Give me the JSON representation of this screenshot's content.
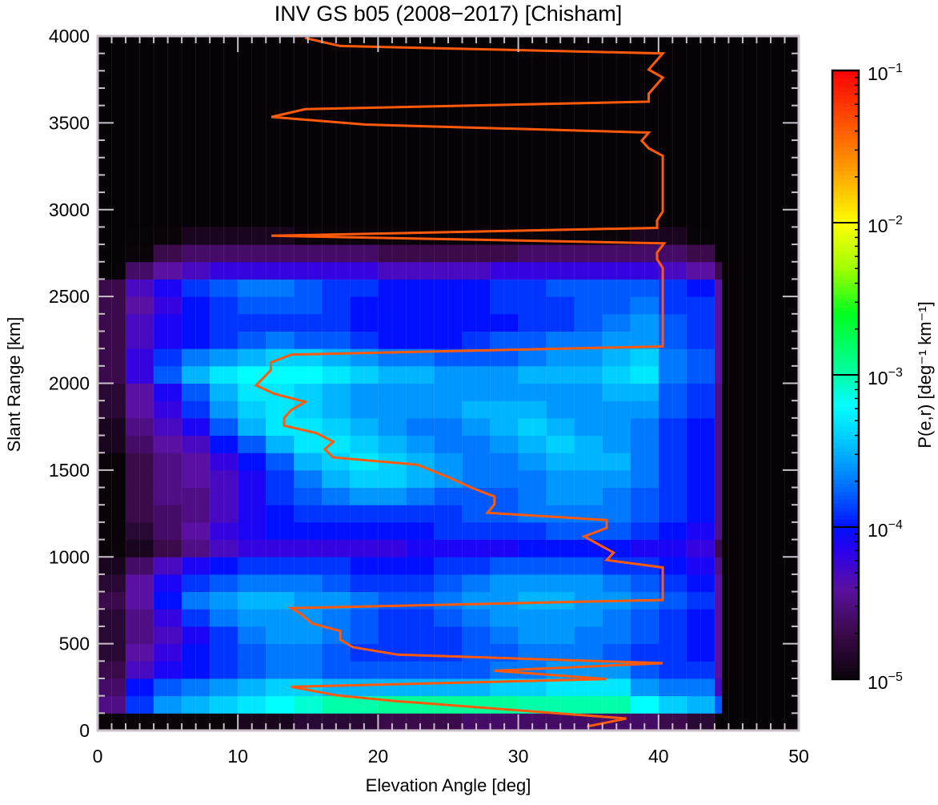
{
  "chart_data": {
    "type": "heatmap",
    "title": "INV GS b05 (2008−2017) [Chisham]",
    "xlabel": "Elevation Angle [deg]",
    "ylabel": "Slant Range [km]",
    "xlim": [
      0,
      50
    ],
    "ylim": [
      0,
      4000
    ],
    "x_ticks": [
      "0",
      "10",
      "20",
      "30",
      "40",
      "50"
    ],
    "x_tick_values": [
      0,
      10,
      20,
      30,
      40,
      50
    ],
    "y_ticks": [
      "0",
      "500",
      "1000",
      "1500",
      "2000",
      "2500",
      "3000",
      "3500",
      "4000"
    ],
    "y_tick_values": [
      0,
      500,
      1000,
      1500,
      2000,
      2500,
      3000,
      3500,
      4000
    ],
    "x_minor_step": 1,
    "y_minor_step": 100,
    "grid": false,
    "heatmap": {
      "value_scale": "log10",
      "elevation_bin_start_deg": 0,
      "elevation_bin_width_deg": 2,
      "elevation_data_max_deg": 44.5,
      "range_bin_start_km": 0,
      "range_bin_width_km": 100,
      "background_log10": -5.5,
      "log10_values_rows_from_0km": [
        [
          -5,
          -5,
          -5,
          -5,
          -5,
          -4.9,
          -4.9,
          -4.8,
          -4.8,
          -4.8,
          -4.7,
          -4.7,
          -4.7,
          -4.6,
          -4.6,
          -4.6,
          -4.6,
          -4.6,
          -4.6,
          -4.6,
          -4.7,
          -4.8,
          -5
        ],
        [
          -4.5,
          -3.9,
          -3.6,
          -3.5,
          -3.4,
          -3.3,
          -3.2,
          -3.1,
          -3.0,
          -3.0,
          -2.95,
          -2.95,
          -2.95,
          -2.95,
          -2.95,
          -3.0,
          -3.0,
          -3.0,
          -3.0,
          -3.2,
          -3.4,
          -3.5,
          -3.8
        ],
        [
          -4.6,
          -4.0,
          -3.8,
          -3.7,
          -3.6,
          -3.5,
          -3.4,
          -3.4,
          -3.5,
          -3.5,
          -3.5,
          -3.5,
          -3.5,
          -3.5,
          -3.4,
          -3.4,
          -3.3,
          -3.3,
          -3.3,
          -3.6,
          -3.7,
          -3.7,
          -4.3
        ],
        [
          -4.7,
          -4.3,
          -4.1,
          -4.0,
          -3.9,
          -3.8,
          -3.7,
          -3.7,
          -3.8,
          -3.8,
          -3.8,
          -3.8,
          -3.8,
          -3.8,
          -3.7,
          -3.7,
          -3.6,
          -3.6,
          -3.6,
          -3.8,
          -3.9,
          -3.9,
          -4.4
        ],
        [
          -4.8,
          -4.4,
          -4.2,
          -4.0,
          -3.9,
          -3.8,
          -3.7,
          -3.7,
          -3.8,
          -3.9,
          -3.9,
          -3.9,
          -3.9,
          -3.8,
          -3.8,
          -3.7,
          -3.7,
          -3.7,
          -3.8,
          -3.9,
          -3.9,
          -4.0,
          -4.4
        ],
        [
          -4.8,
          -4.5,
          -4.3,
          -4.1,
          -3.9,
          -3.7,
          -3.6,
          -3.6,
          -3.7,
          -3.8,
          -3.9,
          -3.9,
          -3.9,
          -3.8,
          -3.7,
          -3.6,
          -3.6,
          -3.7,
          -3.7,
          -3.8,
          -3.9,
          -4.0,
          -4.4
        ],
        [
          -4.8,
          -4.5,
          -4.2,
          -3.9,
          -3.7,
          -3.6,
          -3.6,
          -3.6,
          -3.7,
          -3.8,
          -3.9,
          -3.9,
          -3.8,
          -3.7,
          -3.6,
          -3.6,
          -3.6,
          -3.6,
          -3.7,
          -3.8,
          -3.9,
          -4.0,
          -4.4
        ],
        [
          -4.7,
          -4.4,
          -4.0,
          -3.7,
          -3.6,
          -3.5,
          -3.5,
          -3.6,
          -3.6,
          -3.7,
          -3.8,
          -3.8,
          -3.7,
          -3.6,
          -3.6,
          -3.5,
          -3.5,
          -3.6,
          -3.6,
          -3.7,
          -3.8,
          -3.9,
          -4.4
        ],
        [
          -4.8,
          -4.4,
          -4.1,
          -3.9,
          -3.8,
          -3.7,
          -3.7,
          -3.7,
          -3.8,
          -3.9,
          -3.9,
          -3.9,
          -3.8,
          -3.7,
          -3.6,
          -3.6,
          -3.6,
          -3.6,
          -3.7,
          -3.8,
          -3.9,
          -4.0,
          -4.4
        ],
        [
          -4.9,
          -4.6,
          -4.3,
          -4.1,
          -4.0,
          -3.9,
          -3.9,
          -3.9,
          -3.9,
          -4.0,
          -4.0,
          -4.0,
          -3.9,
          -3.9,
          -3.8,
          -3.8,
          -3.8,
          -3.8,
          -3.9,
          -3.9,
          -4.0,
          -4.1,
          -4.5
        ],
        [
          -5,
          -4.9,
          -4.7,
          -4.5,
          -4.3,
          -4.2,
          -4.2,
          -4.2,
          -4.2,
          -4.2,
          -4.2,
          -4.1,
          -4.1,
          -4.1,
          -4.1,
          -4.0,
          -4.0,
          -4.0,
          -4.0,
          -4.1,
          -4.1,
          -4.2,
          -4.7
        ],
        [
          -5,
          -4.8,
          -4.6,
          -4.4,
          -4.2,
          -4.1,
          -4.0,
          -4.0,
          -4.0,
          -4.0,
          -4.0,
          -4.0,
          -3.9,
          -3.9,
          -3.9,
          -3.9,
          -3.8,
          -3.8,
          -3.8,
          -3.9,
          -4.0,
          -4.1,
          -4.5
        ],
        [
          -5,
          -4.7,
          -4.6,
          -4.5,
          -4.3,
          -4.1,
          -4.0,
          -3.9,
          -3.9,
          -3.9,
          -3.9,
          -3.9,
          -3.9,
          -3.8,
          -3.8,
          -3.7,
          -3.7,
          -3.7,
          -3.7,
          -3.8,
          -3.9,
          -4.0,
          -4.5
        ],
        [
          -5,
          -4.7,
          -4.5,
          -4.5,
          -4.3,
          -4.1,
          -3.9,
          -3.8,
          -3.7,
          -3.6,
          -3.6,
          -3.7,
          -3.8,
          -3.8,
          -3.8,
          -3.7,
          -3.6,
          -3.6,
          -3.7,
          -3.8,
          -3.9,
          -4.0,
          -4.5
        ],
        [
          -5,
          -4.7,
          -4.5,
          -4.4,
          -4.3,
          -4.1,
          -3.9,
          -3.7,
          -3.5,
          -3.4,
          -3.4,
          -3.5,
          -3.6,
          -3.7,
          -3.7,
          -3.7,
          -3.6,
          -3.6,
          -3.6,
          -3.7,
          -3.9,
          -4.0,
          -4.5
        ],
        [
          -5,
          -4.7,
          -4.5,
          -4.4,
          -4.2,
          -4.0,
          -3.8,
          -3.5,
          -3.4,
          -3.3,
          -3.4,
          -3.5,
          -3.6,
          -3.7,
          -3.7,
          -3.6,
          -3.5,
          -3.5,
          -3.5,
          -3.7,
          -3.9,
          -4.0,
          -4.5
        ],
        [
          -4.9,
          -4.6,
          -4.4,
          -4.3,
          -4.0,
          -3.8,
          -3.5,
          -3.3,
          -3.3,
          -3.4,
          -3.5,
          -3.6,
          -3.7,
          -3.7,
          -3.6,
          -3.5,
          -3.4,
          -3.5,
          -3.6,
          -3.7,
          -3.9,
          -4.0,
          -4.5
        ],
        [
          -4.9,
          -4.5,
          -4.3,
          -4.1,
          -3.8,
          -3.5,
          -3.3,
          -3.3,
          -3.4,
          -3.5,
          -3.6,
          -3.7,
          -3.7,
          -3.6,
          -3.5,
          -3.4,
          -3.5,
          -3.6,
          -3.6,
          -3.7,
          -3.9,
          -4.0,
          -4.5
        ],
        [
          -4.8,
          -4.4,
          -4.2,
          -3.9,
          -3.6,
          -3.4,
          -3.3,
          -3.4,
          -3.5,
          -3.6,
          -3.6,
          -3.6,
          -3.6,
          -3.5,
          -3.5,
          -3.5,
          -3.6,
          -3.6,
          -3.6,
          -3.6,
          -3.8,
          -3.9,
          -4.5
        ],
        [
          -4.8,
          -4.4,
          -4.1,
          -3.8,
          -3.5,
          -3.3,
          -3.3,
          -3.4,
          -3.5,
          -3.6,
          -3.6,
          -3.6,
          -3.6,
          -3.6,
          -3.6,
          -3.6,
          -3.6,
          -3.6,
          -3.5,
          -3.5,
          -3.8,
          -3.9,
          -4.5
        ],
        [
          -4.7,
          -4.2,
          -3.8,
          -3.5,
          -3.3,
          -3.2,
          -3.2,
          -3.2,
          -3.3,
          -3.4,
          -3.5,
          -3.5,
          -3.6,
          -3.6,
          -3.6,
          -3.5,
          -3.5,
          -3.5,
          -3.4,
          -3.3,
          -3.7,
          -3.8,
          -4.4
        ],
        [
          -4.7,
          -4.2,
          -3.9,
          -3.7,
          -3.6,
          -3.5,
          -3.4,
          -3.4,
          -3.5,
          -3.6,
          -3.7,
          -3.7,
          -3.8,
          -3.8,
          -3.8,
          -3.7,
          -3.6,
          -3.6,
          -3.5,
          -3.4,
          -3.7,
          -3.8,
          -4.4
        ],
        [
          -4.7,
          -4.3,
          -4.1,
          -4.0,
          -3.9,
          -3.8,
          -3.7,
          -3.8,
          -3.8,
          -3.9,
          -4.0,
          -4.0,
          -4.0,
          -3.9,
          -3.8,
          -3.8,
          -3.7,
          -3.7,
          -3.6,
          -3.6,
          -3.8,
          -3.9,
          -4.4
        ],
        [
          -4.7,
          -4.3,
          -4.1,
          -4.0,
          -3.9,
          -3.9,
          -3.9,
          -3.9,
          -3.9,
          -4.0,
          -4.0,
          -4.0,
          -4.0,
          -4.0,
          -4.0,
          -3.9,
          -3.9,
          -3.8,
          -3.7,
          -3.6,
          -3.8,
          -3.9,
          -4.4
        ],
        [
          -4.7,
          -4.4,
          -4.2,
          -4.0,
          -3.9,
          -3.8,
          -3.8,
          -3.8,
          -3.9,
          -4.0,
          -4.0,
          -4.0,
          -4.0,
          -4.0,
          -3.9,
          -3.9,
          -3.9,
          -3.8,
          -3.8,
          -3.7,
          -3.9,
          -3.9,
          -4.4
        ],
        [
          -4.7,
          -4.3,
          -4.1,
          -3.9,
          -3.8,
          -3.7,
          -3.7,
          -3.8,
          -3.9,
          -3.9,
          -4.0,
          -4.0,
          -4.0,
          -4.0,
          -3.9,
          -3.9,
          -3.8,
          -3.8,
          -3.8,
          -3.8,
          -3.9,
          -4.0,
          -4.4
        ],
        [
          -5.2,
          -4.6,
          -4.4,
          -4.3,
          -4.2,
          -4.2,
          -4.2,
          -4.2,
          -4.2,
          -4.2,
          -4.3,
          -4.3,
          -4.3,
          -4.3,
          -4.2,
          -4.2,
          -4.2,
          -4.2,
          -4.2,
          -4.2,
          -4.3,
          -4.4,
          -4.7
        ],
        [
          -5.5,
          -5.0,
          -4.7,
          -4.6,
          -4.6,
          -4.6,
          -4.6,
          -4.6,
          -4.6,
          -4.6,
          -4.7,
          -4.7,
          -4.7,
          -4.7,
          -4.7,
          -4.6,
          -4.6,
          -4.6,
          -4.6,
          -4.6,
          -4.6,
          -4.7,
          -5.5
        ],
        [
          -5.5,
          -5.3,
          -5.0,
          -4.9,
          -4.9,
          -4.9,
          -4.9,
          -5.0,
          -5.0,
          -5.0,
          -5.0,
          -5.1,
          -5.1,
          -5.0,
          -5.0,
          -5.0,
          -5.0,
          -5.0,
          -5.0,
          -4.9,
          -4.9,
          -5.2,
          -5.5
        ]
      ]
    },
    "overlay_line": {
      "color": "#ff5a0a",
      "points_deg_km": [
        [
          14.8,
          3989
        ],
        [
          17.3,
          3943
        ],
        [
          40.3,
          3900
        ],
        [
          39.3,
          3807
        ],
        [
          40.3,
          3761
        ],
        [
          39.3,
          3668
        ],
        [
          39.3,
          3622
        ],
        [
          14.8,
          3579
        ],
        [
          12.4,
          3534
        ],
        [
          19.1,
          3490
        ],
        [
          39.3,
          3444
        ],
        [
          38.8,
          3397
        ],
        [
          39.3,
          3353
        ],
        [
          40.3,
          3310
        ],
        [
          40.3,
          2990
        ],
        [
          39.9,
          2938
        ],
        [
          39.9,
          2895
        ],
        [
          12.4,
          2850
        ],
        [
          40.4,
          2806
        ],
        [
          39.9,
          2753
        ],
        [
          39.9,
          2714
        ],
        [
          40.3,
          2665
        ],
        [
          40.3,
          2212
        ],
        [
          13.8,
          2165
        ],
        [
          12.35,
          2120
        ],
        [
          12.35,
          2075
        ],
        [
          11.3,
          1988
        ],
        [
          12.6,
          1939
        ],
        [
          14.8,
          1893
        ],
        [
          13.8,
          1846
        ],
        [
          13.3,
          1799
        ],
        [
          13.3,
          1756
        ],
        [
          15.6,
          1713
        ],
        [
          16.8,
          1663
        ],
        [
          16.2,
          1620
        ],
        [
          16.8,
          1573
        ],
        [
          22.8,
          1531
        ],
        [
          25.0,
          1459
        ],
        [
          26.8,
          1394
        ],
        [
          28.3,
          1348
        ],
        [
          28.3,
          1303
        ],
        [
          27.8,
          1254
        ],
        [
          36.3,
          1212
        ],
        [
          36.3,
          1167
        ],
        [
          34.7,
          1118
        ],
        [
          36.8,
          1024
        ],
        [
          36.3,
          982
        ],
        [
          40.3,
          939
        ],
        [
          40.3,
          752
        ],
        [
          13.8,
          705
        ],
        [
          14.5,
          671
        ],
        [
          15.3,
          616
        ],
        [
          17.3,
          573
        ],
        [
          17.3,
          524
        ],
        [
          18.2,
          480
        ],
        [
          21.4,
          437
        ],
        [
          40.3,
          388
        ],
        [
          28.3,
          344
        ],
        [
          36.3,
          296
        ],
        [
          13.8,
          252
        ],
        [
          17.0,
          203
        ],
        [
          21.2,
          170
        ],
        [
          37.7,
          69
        ],
        [
          34.9,
          23
        ]
      ]
    },
    "colorbar": {
      "label": "P(e,r) [deg⁻¹ km⁻¹]",
      "scale": "log",
      "range_log10": [
        -5,
        -1
      ],
      "ticks": [
        {
          "base": "10",
          "exp": "−1",
          "value_log10": -1
        },
        {
          "base": "10",
          "exp": "−2",
          "value_log10": -2
        },
        {
          "base": "10",
          "exp": "−3",
          "value_log10": -3
        },
        {
          "base": "10",
          "exp": "−4",
          "value_log10": -4
        },
        {
          "base": "10",
          "exp": "−5",
          "value_log10": -5
        }
      ],
      "colormap_stops": [
        [
          -5.6,
          "#050205"
        ],
        [
          -5.0,
          "#0a030a"
        ],
        [
          -4.7,
          "#3a0a4a"
        ],
        [
          -4.4,
          "#5a10a0"
        ],
        [
          -4.15,
          "#2a00f0"
        ],
        [
          -4.0,
          "#0010ff"
        ],
        [
          -3.8,
          "#0058ff"
        ],
        [
          -3.6,
          "#0098ff"
        ],
        [
          -3.4,
          "#00d0ff"
        ],
        [
          -3.2,
          "#00ffff"
        ],
        [
          -3.0,
          "#00ffa8"
        ],
        [
          -2.6,
          "#00ff20"
        ],
        [
          -2.3,
          "#a0ff00"
        ],
        [
          -2.0,
          "#ffff00"
        ],
        [
          -1.6,
          "#ff9000"
        ],
        [
          -1.0,
          "#ff0000"
        ]
      ]
    }
  }
}
